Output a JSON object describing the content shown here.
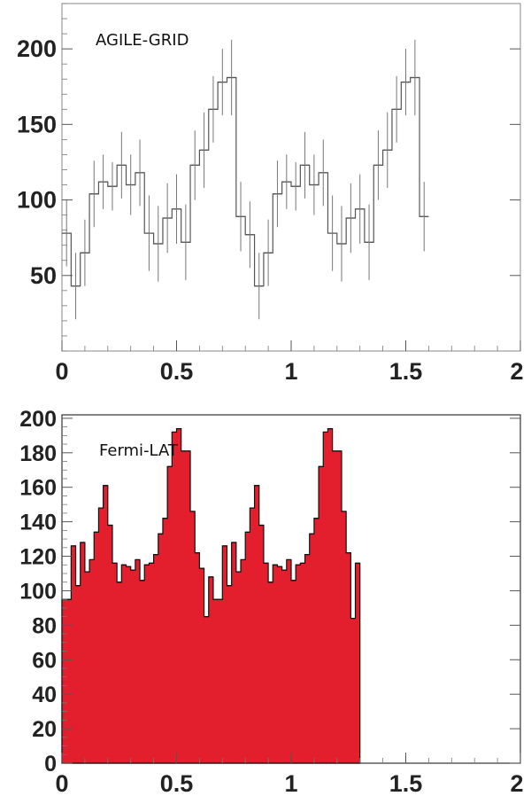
{
  "chart_data": [
    {
      "type": "histogram",
      "title": "AGILE-GRID",
      "xlabel": "",
      "ylabel": "",
      "xlim": [
        0,
        2
      ],
      "ylim": [
        0,
        230
      ],
      "x_ticks": [
        "0",
        "0.5",
        "1",
        "1.5",
        "2"
      ],
      "y_ticks": [
        "50",
        "100",
        "150",
        "200"
      ],
      "y_tick_values": [
        50,
        100,
        150,
        200
      ],
      "x_tick_values": [
        0,
        0.5,
        1,
        1.5,
        2
      ],
      "bin_width": 0.04,
      "values": [
        78,
        43,
        65,
        104,
        112,
        109,
        123,
        110,
        118,
        78,
        71,
        88,
        94,
        72,
        123,
        133,
        160,
        178,
        181,
        89,
        77,
        43,
        65,
        104,
        112,
        109,
        123,
        110,
        118,
        78,
        71,
        88,
        94,
        72,
        123,
        133,
        160,
        178,
        181,
        89
      ],
      "errors": [
        22,
        22,
        22,
        22,
        18,
        16,
        22,
        20,
        22,
        25,
        25,
        23,
        23,
        25,
        23,
        25,
        22,
        22,
        25,
        23,
        22,
        22,
        22,
        22,
        18,
        16,
        22,
        20,
        22,
        25,
        25,
        23,
        23,
        25,
        23,
        25,
        22,
        22,
        25,
        23
      ],
      "line_color": "#555555"
    },
    {
      "type": "histogram",
      "title": "Fermi-LAT",
      "xlabel": "",
      "ylabel": "",
      "xlim": [
        0,
        2
      ],
      "ylim": [
        0,
        202
      ],
      "x_ticks": [
        "0",
        "0.5",
        "1",
        "1.5",
        "2"
      ],
      "y_ticks": [
        "0",
        "20",
        "40",
        "60",
        "80",
        "100",
        "120",
        "140",
        "160",
        "180",
        "200"
      ],
      "y_tick_values": [
        0,
        20,
        40,
        60,
        80,
        100,
        120,
        140,
        160,
        180,
        200
      ],
      "x_tick_values": [
        0,
        0.5,
        1,
        1.5,
        2
      ],
      "bin_width": 0.02,
      "values": [
        95,
        95,
        126,
        103,
        128,
        111,
        118,
        134,
        148,
        161,
        138,
        116,
        105,
        115,
        114,
        112,
        118,
        106,
        115,
        116,
        121,
        133,
        142,
        172,
        192,
        194,
        181,
        181,
        146,
        122,
        113,
        85,
        108,
        95,
        95,
        126,
        103,
        128,
        111,
        118,
        134,
        148,
        161,
        138,
        116,
        105,
        115,
        114,
        112,
        118,
        106,
        115,
        116,
        121,
        133,
        142,
        172,
        192,
        194,
        181,
        181,
        146,
        122,
        84,
        116
      ],
      "fill_color": "#e31e2d",
      "line_color": "#111111"
    }
  ]
}
